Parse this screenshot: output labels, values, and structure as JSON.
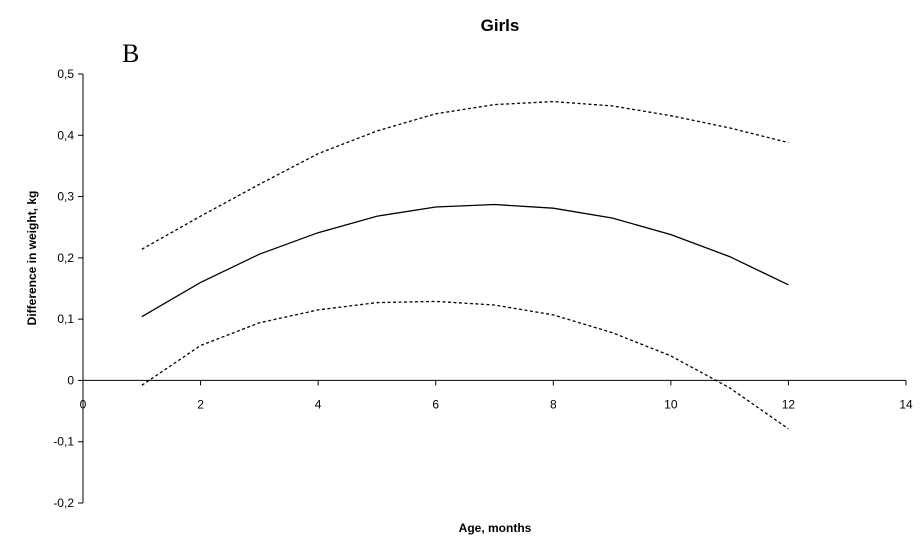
{
  "chart_data": {
    "type": "line",
    "title": "Girls",
    "panel_label": "B",
    "xlabel": "Age, months",
    "ylabel": "Difference in weight, kg",
    "xlim": [
      0,
      14
    ],
    "ylim": [
      -0.2,
      0.5
    ],
    "x_ticks": [
      0,
      2,
      4,
      6,
      8,
      10,
      12,
      14
    ],
    "y_ticks": [
      0.5,
      0.4,
      0.3,
      0.2,
      0.1,
      0,
      -0.1,
      -0.2
    ],
    "x_tick_labels": [
      "0",
      "2",
      "4",
      "6",
      "8",
      "10",
      "12",
      "14"
    ],
    "y_tick_labels": [
      "0,5",
      "0,4",
      "0,3",
      "0,2",
      "0,1",
      "0",
      "-0,1",
      "-0,2"
    ],
    "grid": false,
    "legend": "none",
    "series": [
      {
        "style": "solid",
        "x": [
          1,
          2,
          3,
          4,
          5,
          6,
          7,
          8,
          9,
          10,
          11,
          12
        ],
        "y": [
          0.104,
          0.16,
          0.206,
          0.241,
          0.268,
          0.283,
          0.287,
          0.281,
          0.265,
          0.238,
          0.202,
          0.156
        ]
      },
      {
        "style": "dashed",
        "x": [
          1,
          2,
          3,
          4,
          5,
          6,
          7,
          8,
          9,
          10,
          11,
          12
        ],
        "y": [
          0.214,
          0.268,
          0.32,
          0.37,
          0.407,
          0.435,
          0.45,
          0.455,
          0.448,
          0.432,
          0.412,
          0.388
        ]
      },
      {
        "style": "dashed",
        "x": [
          1,
          2,
          3,
          4,
          5,
          6,
          7,
          8,
          9,
          10,
          11,
          12
        ],
        "y": [
          -0.008,
          0.057,
          0.094,
          0.115,
          0.127,
          0.129,
          0.123,
          0.107,
          0.078,
          0.04,
          -0.012,
          -0.079
        ]
      }
    ]
  }
}
